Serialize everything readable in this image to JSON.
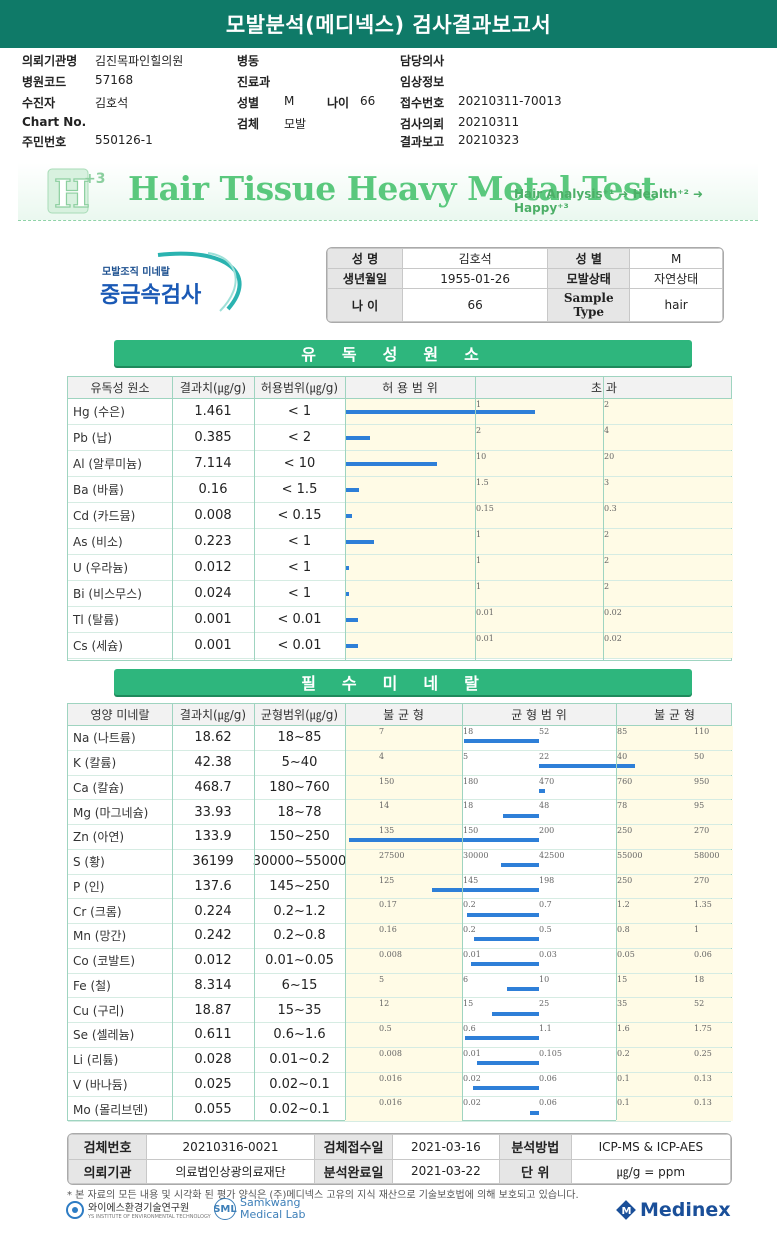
{
  "title": "모발분석(메디넥스) 검사결과보고서",
  "meta": {
    "hospital_label": "의뢰기관명",
    "hospital": "김진목파인힐의원",
    "ward_label": "병동",
    "ward": "",
    "doctor_label": "담당의사",
    "doctor": "",
    "code_label": "병원코드",
    "code": "57168",
    "dept_label": "진료과",
    "dept": "",
    "clinical_label": "임상정보",
    "clinical": "",
    "patient_label": "수진자",
    "patient": "김호석",
    "sex_label": "성별",
    "sex": "M",
    "age_label": "나이",
    "age": "66",
    "receipt_label": "접수번호",
    "receipt": "20210311-70013",
    "chart_label": "Chart No.",
    "chart": "",
    "specimen_label": "검체",
    "specimen": "모발",
    "request_label": "검사의뢰",
    "request": "20210311",
    "id_label": "주민번호",
    "id": "550126-1",
    "report_label": "결과보고",
    "report": "20210323"
  },
  "banner": {
    "logo_letter": "H",
    "logo_sup": "+3",
    "title": "Hair Tissue Heavy Metal Test",
    "subtitle": "Hair Analysis⁺¹ ➜ Health⁺² ➜ Happy⁺³"
  },
  "logo": {
    "small": "모발조직 미네랄",
    "big": "중금속검사"
  },
  "patient_info": {
    "name_label": "성 명",
    "name": "김호석",
    "sex_label": "성 별",
    "sex": "M",
    "dob_label": "생년월일",
    "dob": "1955-01-26",
    "hair_label": "모발상태",
    "hair": "자연상태",
    "age_label": "나 이",
    "age": "66",
    "sample_label": "Sample Type",
    "sample": "hair"
  },
  "toxic": {
    "section_title": "유독성원소",
    "headers": [
      "유독성 원소",
      "결과치(㎍/g)",
      "허용범위(㎍/g)",
      "허 용 범 위",
      "초 과"
    ],
    "rows": [
      {
        "name": "Hg (수은)",
        "result": "1.461",
        "range": "< 1",
        "t1": "1",
        "t2": "2",
        "bar": 1.461,
        "lim": 1
      },
      {
        "name": "Pb (납)",
        "result": "0.385",
        "range": "< 2",
        "t1": "2",
        "t2": "4",
        "bar": 0.385,
        "lim": 2
      },
      {
        "name": "Al (알루미늄)",
        "result": "7.114",
        "range": "< 10",
        "t1": "10",
        "t2": "20",
        "bar": 7.114,
        "lim": 10
      },
      {
        "name": "Ba (바륨)",
        "result": "0.16",
        "range": "< 1.5",
        "t1": "1.5",
        "t2": "3",
        "bar": 0.16,
        "lim": 1.5
      },
      {
        "name": "Cd (카드뮴)",
        "result": "0.008",
        "range": "< 0.15",
        "t1": "0.15",
        "t2": "0.3",
        "bar": 0.008,
        "lim": 0.15
      },
      {
        "name": "As (비소)",
        "result": "0.223",
        "range": "< 1",
        "t1": "1",
        "t2": "2",
        "bar": 0.223,
        "lim": 1
      },
      {
        "name": "U (우라늄)",
        "result": "0.012",
        "range": "< 1",
        "t1": "1",
        "t2": "2",
        "bar": 0.012,
        "lim": 1
      },
      {
        "name": "Bi (비스무스)",
        "result": "0.024",
        "range": "< 1",
        "t1": "1",
        "t2": "2",
        "bar": 0.024,
        "lim": 1
      },
      {
        "name": "Tl (탈륨)",
        "result": "0.001",
        "range": "< 0.01",
        "t1": "0.01",
        "t2": "0.02",
        "bar": 0.001,
        "lim": 0.01
      },
      {
        "name": "Cs (세슘)",
        "result": "0.001",
        "range": "< 0.01",
        "t1": "0.01",
        "t2": "0.02",
        "bar": 0.001,
        "lim": 0.01
      }
    ]
  },
  "minerals": {
    "section_title": "필수미네랄",
    "headers": [
      "영양 미네랄",
      "결과치(㎍/g)",
      "균형범위(㎍/g)",
      "불 균 형",
      "균 형 범 위",
      "불 균 형"
    ],
    "rows": [
      {
        "name": "Na (나트륨)",
        "result": "18.62",
        "range": "18~85",
        "ticks": [
          "7",
          "18",
          "52",
          "85",
          "110"
        ],
        "value": 18.62
      },
      {
        "name": "K (칼륨)",
        "result": "42.38",
        "range": "5~40",
        "ticks": [
          "4",
          "5",
          "22",
          "40",
          "50"
        ],
        "value": 42.38
      },
      {
        "name": "Ca (칼슘)",
        "result": "468.7",
        "range": "180~760",
        "ticks": [
          "150",
          "180",
          "470",
          "760",
          "950"
        ],
        "value": 468.7
      },
      {
        "name": "Mg (마그네슘)",
        "result": "33.93",
        "range": "18~78",
        "ticks": [
          "14",
          "18",
          "48",
          "78",
          "95"
        ],
        "value": 33.93
      },
      {
        "name": "Zn (아연)",
        "result": "133.9",
        "range": "150~250",
        "ticks": [
          "135",
          "150",
          "200",
          "250",
          "270"
        ],
        "value": 133.9
      },
      {
        "name": "S (황)",
        "result": "36199",
        "range": "30000~55000",
        "ticks": [
          "27500",
          "30000",
          "42500",
          "55000",
          "58000"
        ],
        "value": 36199
      },
      {
        "name": "P (인)",
        "result": "137.6",
        "range": "145~250",
        "ticks": [
          "125",
          "145",
          "198",
          "250",
          "270"
        ],
        "value": 137.6
      },
      {
        "name": "Cr (크롬)",
        "result": "0.224",
        "range": "0.2~1.2",
        "ticks": [
          "0.17",
          "0.2",
          "0.7",
          "1.2",
          "1.35"
        ],
        "value": 0.224
      },
      {
        "name": "Mn (망간)",
        "result": "0.242",
        "range": "0.2~0.8",
        "ticks": [
          "0.16",
          "0.2",
          "0.5",
          "0.8",
          "1"
        ],
        "value": 0.242
      },
      {
        "name": "Co (코발트)",
        "result": "0.012",
        "range": "0.01~0.05",
        "ticks": [
          "0.008",
          "0.01",
          "0.03",
          "0.05",
          "0.06"
        ],
        "value": 0.012
      },
      {
        "name": "Fe (철)",
        "result": "8.314",
        "range": "6~15",
        "ticks": [
          "5",
          "6",
          "10",
          "15",
          "18"
        ],
        "value": 8.314
      },
      {
        "name": "Cu (구리)",
        "result": "18.87",
        "range": "15~35",
        "ticks": [
          "12",
          "15",
          "25",
          "35",
          "52"
        ],
        "value": 18.87
      },
      {
        "name": "Se (셀레늄)",
        "result": "0.611",
        "range": "0.6~1.6",
        "ticks": [
          "0.5",
          "0.6",
          "1.1",
          "1.6",
          "1.75"
        ],
        "value": 0.611
      },
      {
        "name": "Li (리튬)",
        "result": "0.028",
        "range": "0.01~0.2",
        "ticks": [
          "0.008",
          "0.01",
          "0.105",
          "0.2",
          "0.25"
        ],
        "value": 0.028
      },
      {
        "name": "V (바나듐)",
        "result": "0.025",
        "range": "0.02~0.1",
        "ticks": [
          "0.016",
          "0.02",
          "0.06",
          "0.1",
          "0.13"
        ],
        "value": 0.025
      },
      {
        "name": "Mo (몰리브덴)",
        "result": "0.055",
        "range": "0.02~0.1",
        "ticks": [
          "0.016",
          "0.02",
          "0.06",
          "0.1",
          "0.13"
        ],
        "value": 0.055
      }
    ]
  },
  "footer": {
    "specimen_no_label": "검체번호",
    "specimen_no": "20210316-0021",
    "received_label": "검체접수일",
    "received": "2021-03-16",
    "method_label": "분석방법",
    "method": "ICP-MS & ICP-AES",
    "org_label": "의뢰기관",
    "org": "의료법인상광의료재단",
    "completed_label": "분석완료일",
    "completed": "2021-03-22",
    "unit_label": "단 위",
    "unit": "㎍/g = ppm"
  },
  "notice": "* 본 자료의 모든 내용 및 시각화 된 평가 양식은 (주)메디넥스 고유의 지식 재산으로 기술보호법에 의해 보호되고 있습니다.",
  "orgs": {
    "org1": "와이에스환경기술연구원",
    "org1_en": "YS INSTITUTE OF ENVIRONMENTAL TECHNOLOGY",
    "org2_abbr": "SML",
    "org2_line1": "Samkwang",
    "org2_line2": "Medical Lab",
    "org3": "Medinex"
  }
}
